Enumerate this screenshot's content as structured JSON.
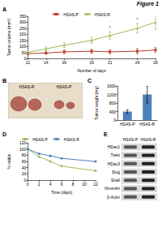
{
  "title": "Figure 1",
  "chart_data": [
    {
      "panel": "A",
      "type": "line",
      "x_label": "Number of days",
      "y_label": "Tumor volume (mm³)",
      "x": [
        12,
        14,
        16,
        19,
        21,
        24,
        26
      ],
      "xlim": [
        12,
        26
      ],
      "xticks": [
        12,
        14,
        16,
        19,
        21,
        24,
        26
      ],
      "ylim": [
        0,
        350
      ],
      "yticks": [
        0,
        50,
        100,
        150,
        200,
        250,
        300,
        350
      ],
      "grid": false,
      "legend": "top",
      "series": [
        {
          "name": "HSAS-P",
          "color": "#c0392b",
          "marker": "rect",
          "line_style": "solid",
          "values": [
            40,
            45,
            55,
            60,
            55,
            60,
            70
          ],
          "errors": [
            10,
            10,
            15,
            15,
            15,
            20,
            20
          ]
        },
        {
          "name": "HSAS-R",
          "color": "#9bbb59",
          "marker": "triangle",
          "line_style": "solid",
          "values": [
            50,
            80,
            110,
            150,
            190,
            250,
            300
          ],
          "errors": [
            10,
            15,
            20,
            25,
            30,
            40,
            60
          ]
        }
      ],
      "annotations": [
        {
          "x": 21,
          "y": 235,
          "text": "*"
        },
        {
          "x": 24,
          "y": 305,
          "text": "*"
        }
      ]
    },
    {
      "panel": "C",
      "type": "bar",
      "y_label": "Tumor weight (mg)",
      "categories": [
        "HSAS-P",
        "HSAS-R"
      ],
      "values": [
        400,
        1200
      ],
      "errors": [
        80,
        400
      ],
      "colors": [
        "#4f81bd",
        "#4f81bd"
      ],
      "ylim": [
        0,
        1600
      ],
      "yticks": [
        0,
        400,
        800,
        1200,
        1600
      ],
      "grid": false
    },
    {
      "panel": "D",
      "type": "line",
      "x_label": "Time (days)",
      "y_label": "% viable",
      "x": [
        0,
        2,
        4,
        6,
        12
      ],
      "xlim": [
        0,
        12
      ],
      "xticks": [
        0,
        2,
        4,
        6,
        8,
        10,
        12
      ],
      "ylim": [
        0,
        120
      ],
      "yticks": [
        0,
        20,
        40,
        60,
        80,
        100,
        120
      ],
      "grid": false,
      "legend": "top",
      "series": [
        {
          "name": "HSAS-P",
          "color": "#9bbb59",
          "marker": "circle",
          "line_style": "solid",
          "values": [
            100,
            75,
            60,
            45,
            30
          ]
        },
        {
          "name": "HSAS-R",
          "color": "#4f81bd",
          "marker": "circle",
          "line_style": "solid",
          "values": [
            100,
            85,
            78,
            70,
            60
          ]
        }
      ]
    }
  ],
  "photo": {
    "panel": "B",
    "labels": [
      "HSAS-R",
      "HSAS-P"
    ]
  },
  "blot": {
    "panel": "E",
    "lanes": [
      "HSAS-P",
      "HSAS-R"
    ],
    "rows": [
      "HDac1",
      "Twist",
      "HDac3",
      "Slug",
      "Snail",
      "Vimentin",
      "β-Actin"
    ]
  }
}
